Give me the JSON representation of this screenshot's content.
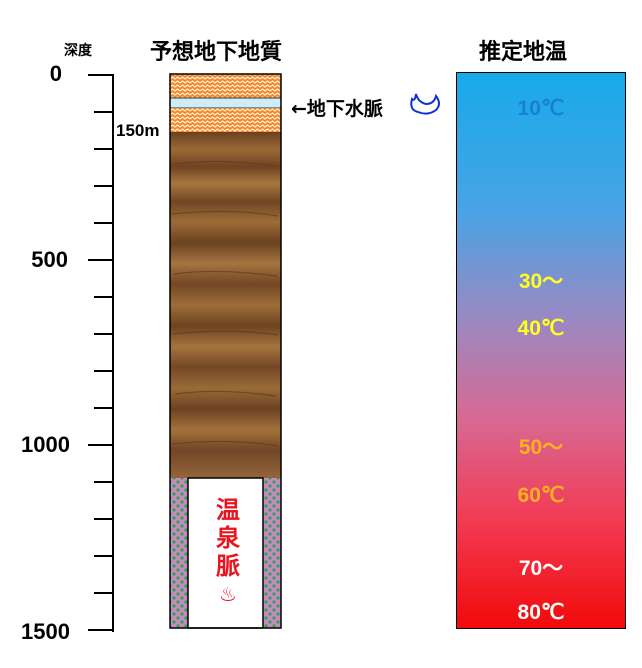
{
  "headers": {
    "depth": "深度",
    "geology": "予想地下地質",
    "temperature": "推定地温"
  },
  "depth_scale": {
    "labels": [
      "0",
      "500",
      "1000",
      "1500"
    ],
    "marker_150": "150m"
  },
  "groundwater": {
    "label": "←地下水脈"
  },
  "hot_spring": {
    "chars": [
      "温",
      "泉",
      "脈"
    ],
    "symbol": "♨"
  },
  "temperature_labels": {
    "t10": "10℃",
    "t30": "30～",
    "t40": "40℃",
    "t50": "50～",
    "t60": "60℃",
    "t70": "70～",
    "t80": "80℃"
  },
  "colors": {
    "sand_layer": "#f5862b",
    "water_layer": "#cdeef8",
    "rock": "#8a5a2b",
    "hot_spring_text": "#e8141e",
    "gradient_top": "#1aa8e8",
    "gradient_bottom": "#f00a0a",
    "label_blue": "#1a7fd6",
    "label_yellow": "#ffff22",
    "label_orange": "#ffb020",
    "label_white": "#ffffff"
  }
}
